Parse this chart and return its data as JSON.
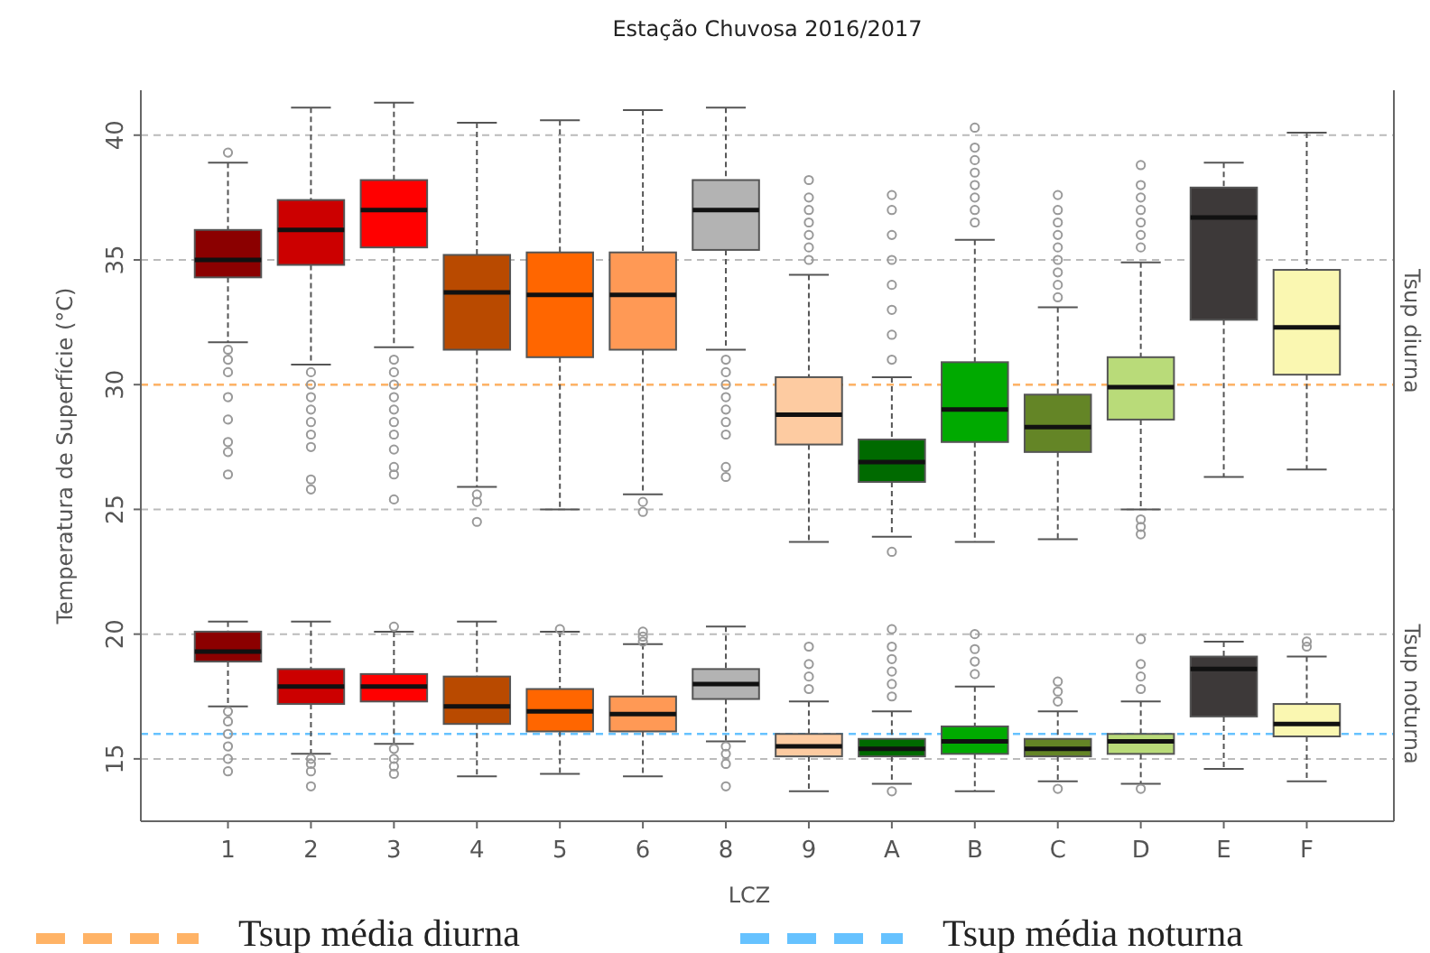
{
  "chart_data": {
    "type": "box",
    "title": "Estação Chuvosa 2016/2017",
    "xlabel": "LCZ",
    "ylabel": "Temperatura de Superfície (°C)",
    "categories": [
      "1",
      "2",
      "3",
      "4",
      "5",
      "6",
      "8",
      "9",
      "A",
      "B",
      "C",
      "D",
      "E",
      "F"
    ],
    "ylim": [
      12.5,
      41.8
    ],
    "yticks": [
      15,
      20,
      25,
      30,
      35,
      40
    ],
    "grid": "y",
    "legend": "bottom",
    "series": [
      {
        "name": "Tsup diurna",
        "colors": [
          "#8b0000",
          "#cc0000",
          "#ff0000",
          "#b94a00",
          "#ff6600",
          "#ff9955",
          "#b3b3b3",
          "#fdcba1",
          "#006a00",
          "#00aa00",
          "#648526",
          "#b9db79",
          "#3d3939",
          "#faf7b1"
        ],
        "boxes": [
          {
            "low": 31.7,
            "q1": 34.3,
            "median": 35.0,
            "q3": 36.2,
            "high": 38.9,
            "outliers": [
              39.3,
              31.4,
              31.0,
              30.5,
              29.5,
              28.6,
              27.7,
              27.3,
              26.4
            ]
          },
          {
            "low": 30.8,
            "q1": 34.8,
            "median": 36.2,
            "q3": 37.4,
            "high": 41.1,
            "outliers": [
              30.5,
              30.0,
              29.5,
              29.0,
              28.5,
              28.0,
              27.5,
              26.2,
              25.8
            ]
          },
          {
            "low": 31.5,
            "q1": 35.5,
            "median": 37.0,
            "q3": 38.2,
            "high": 41.3,
            "outliers": [
              31.0,
              30.5,
              30.0,
              29.5,
              29.0,
              28.5,
              28.0,
              27.4,
              26.7,
              26.4,
              25.4
            ]
          },
          {
            "low": 25.9,
            "q1": 31.4,
            "median": 33.7,
            "q3": 35.2,
            "high": 40.5,
            "outliers": [
              25.6,
              25.3,
              24.5
            ]
          },
          {
            "low": 25.0,
            "q1": 31.1,
            "median": 33.6,
            "q3": 35.3,
            "high": 40.6
          },
          {
            "low": 25.6,
            "q1": 31.4,
            "median": 33.6,
            "q3": 35.3,
            "high": 41.0,
            "outliers": [
              25.3,
              24.9
            ]
          },
          {
            "low": 31.4,
            "q1": 35.4,
            "median": 37.0,
            "q3": 38.2,
            "high": 41.1,
            "outliers": [
              31.0,
              30.5,
              30.0,
              29.5,
              29.0,
              28.5,
              28.0,
              26.7,
              26.3
            ]
          },
          {
            "low": 23.7,
            "q1": 27.6,
            "median": 28.8,
            "q3": 30.3,
            "high": 34.4,
            "outliers": [
              35.0,
              35.5,
              36.0,
              36.5,
              37.0,
              37.5,
              38.2
            ]
          },
          {
            "low": 23.9,
            "q1": 26.1,
            "median": 26.9,
            "q3": 27.8,
            "high": 30.3,
            "outliers": [
              31.0,
              32.0,
              33.0,
              34.0,
              35.0,
              36.0,
              37.0,
              37.6,
              23.3
            ]
          },
          {
            "low": 23.7,
            "q1": 27.7,
            "median": 29.0,
            "q3": 30.9,
            "high": 35.8,
            "outliers": [
              36.5,
              37.0,
              37.5,
              38.0,
              38.5,
              39.0,
              39.5,
              40.3
            ]
          },
          {
            "low": 23.8,
            "q1": 27.3,
            "median": 28.3,
            "q3": 29.6,
            "high": 33.1,
            "outliers": [
              33.5,
              34.0,
              34.5,
              35.0,
              35.5,
              36.0,
              36.5,
              37.0,
              37.6
            ]
          },
          {
            "low": 25.0,
            "q1": 28.6,
            "median": 29.9,
            "q3": 31.1,
            "high": 34.9,
            "outliers": [
              35.5,
              36.0,
              36.5,
              37.0,
              37.5,
              38.0,
              38.8,
              24.6,
              24.3,
              24.0
            ]
          },
          {
            "low": 26.3,
            "q1": 32.6,
            "median": 36.7,
            "q3": 37.9,
            "high": 38.9
          },
          {
            "low": 26.6,
            "q1": 30.4,
            "median": 32.3,
            "q3": 34.6,
            "high": 40.1
          }
        ]
      },
      {
        "name": "Tsup noturna",
        "colors": [
          "#8b0000",
          "#cc0000",
          "#ff0000",
          "#b94a00",
          "#ff6600",
          "#ff9955",
          "#b3b3b3",
          "#fdcba1",
          "#006a00",
          "#00aa00",
          "#648526",
          "#b9db79",
          "#3d3939",
          "#faf7b1"
        ],
        "boxes": [
          {
            "low": 17.1,
            "q1": 18.9,
            "median": 19.3,
            "q3": 20.1,
            "high": 20.5,
            "outliers": [
              16.9,
              16.5,
              16.0,
              15.5,
              15.0,
              14.5
            ]
          },
          {
            "low": 15.2,
            "q1": 17.2,
            "median": 17.9,
            "q3": 18.6,
            "high": 20.5,
            "outliers": [
              15.0,
              14.8,
              14.5,
              13.9
            ]
          },
          {
            "low": 15.6,
            "q1": 17.3,
            "median": 17.9,
            "q3": 18.4,
            "high": 20.1,
            "outliers": [
              20.3,
              15.4,
              15.0,
              14.7,
              14.4
            ]
          },
          {
            "low": 14.3,
            "q1": 16.4,
            "median": 17.1,
            "q3": 18.3,
            "high": 20.5
          },
          {
            "low": 14.4,
            "q1": 16.1,
            "median": 16.9,
            "q3": 17.8,
            "high": 20.1,
            "outliers": [
              20.2
            ]
          },
          {
            "low": 14.3,
            "q1": 16.1,
            "median": 16.8,
            "q3": 17.5,
            "high": 19.6,
            "outliers": [
              19.7,
              19.9,
              20.1
            ]
          },
          {
            "low": 15.7,
            "q1": 17.4,
            "median": 18.0,
            "q3": 18.6,
            "high": 20.3,
            "outliers": [
              15.5,
              15.2,
              14.8,
              13.9
            ]
          },
          {
            "low": 13.7,
            "q1": 15.1,
            "median": 15.5,
            "q3": 16.0,
            "high": 17.3,
            "outliers": [
              17.8,
              18.3,
              18.8,
              19.5
            ]
          },
          {
            "low": 14.0,
            "q1": 15.1,
            "median": 15.4,
            "q3": 15.8,
            "high": 16.9,
            "outliers": [
              17.5,
              18.0,
              18.5,
              19.0,
              19.5,
              20.2,
              13.7
            ]
          },
          {
            "low": 13.7,
            "q1": 15.2,
            "median": 15.7,
            "q3": 16.3,
            "high": 17.9,
            "outliers": [
              18.4,
              18.9,
              19.4,
              20.0
            ]
          },
          {
            "low": 14.1,
            "q1": 15.1,
            "median": 15.4,
            "q3": 15.8,
            "high": 16.9,
            "outliers": [
              17.3,
              17.7,
              18.1,
              13.8
            ]
          },
          {
            "low": 14.0,
            "q1": 15.2,
            "median": 15.7,
            "q3": 16.0,
            "high": 17.3,
            "outliers": [
              17.8,
              18.3,
              18.8,
              19.8,
              13.8
            ]
          },
          {
            "low": 14.6,
            "q1": 16.7,
            "median": 18.6,
            "q3": 19.1,
            "high": 19.7
          },
          {
            "low": 14.1,
            "q1": 15.9,
            "median": 16.4,
            "q3": 17.2,
            "high": 19.1,
            "outliers": [
              19.5,
              19.7
            ]
          }
        ]
      }
    ],
    "ref_lines": [
      {
        "axis": "y",
        "value": 30,
        "label": "Tsup média diurna",
        "color": "#ffb366",
        "line_style": "dashed"
      },
      {
        "axis": "y",
        "value": 16,
        "label": "Tsup média noturna",
        "color": "#66c2ff",
        "line_style": "dashed"
      }
    ]
  }
}
